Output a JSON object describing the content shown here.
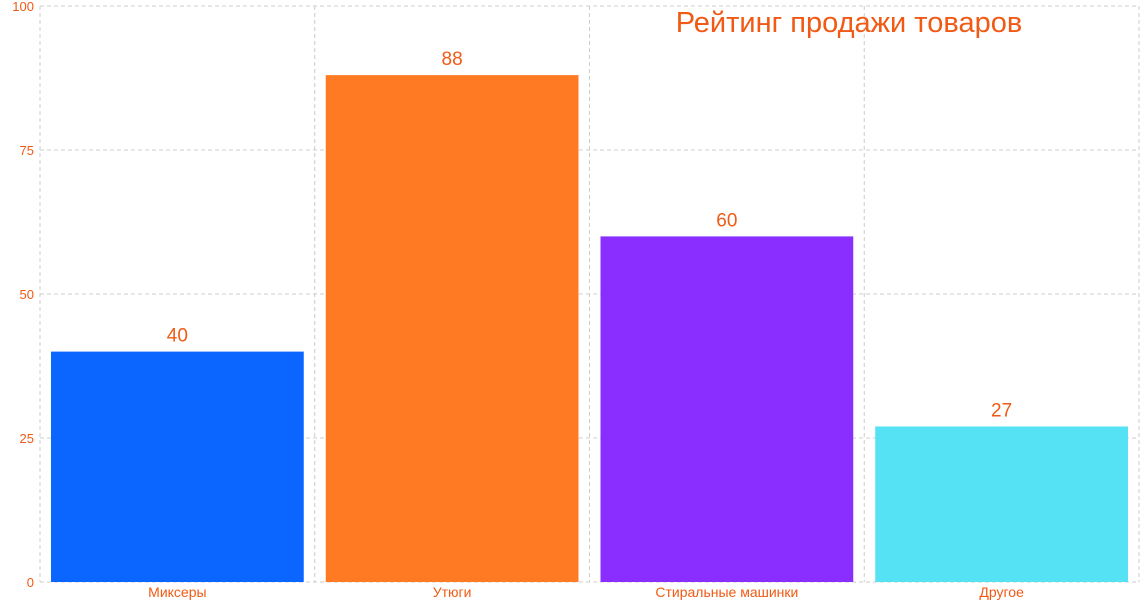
{
  "colors": {
    "text": "#f05a14",
    "grid": "#cccccc",
    "background": "#ffffff"
  },
  "chart_data": {
    "type": "bar",
    "title": "Рейтинг продажи товаров",
    "categories": [
      "Миксеры",
      "Утюги",
      "Стиральные машинки",
      "Другое"
    ],
    "values": [
      40,
      88,
      60,
      27
    ],
    "bar_colors": [
      "#0a66ff",
      "#ff7a22",
      "#8a2eff",
      "#55e2f5"
    ],
    "y_ticks": [
      0,
      25,
      50,
      75,
      100
    ],
    "ylim": [
      0,
      100
    ],
    "grid": true,
    "grid_style": "dashed",
    "data_labels": true,
    "legend": "none"
  }
}
